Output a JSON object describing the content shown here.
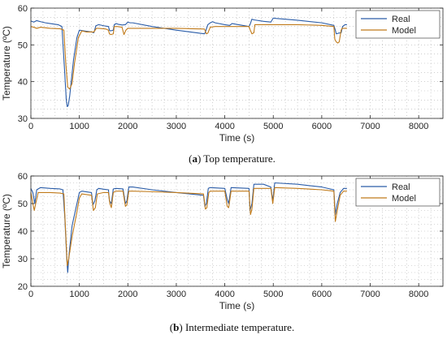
{
  "chart_data": [
    {
      "type": "line",
      "caption_letter": "a",
      "caption_text": ") Top temperature.",
      "title": "",
      "xlabel": "Time (s)",
      "ylabel": "Temperature (ºC)",
      "xlim": [
        0,
        8500
      ],
      "ylim": [
        30,
        60
      ],
      "xticks": [
        "0",
        "1000",
        "2000",
        "3000",
        "4000",
        "5000",
        "6000",
        "7000",
        "8000"
      ],
      "yticks": [
        "30",
        "40",
        "50",
        "60"
      ],
      "grid": "dotted",
      "legend": "top-right",
      "series": [
        {
          "name": "Real",
          "color": "#2a5ca8",
          "x": [
            0,
            60,
            120,
            200,
            300,
            400,
            560,
            640,
            700,
            730,
            750,
            770,
            800,
            880,
            950,
            1000,
            1100,
            1250,
            1300,
            1340,
            1400,
            1500,
            1600,
            1620,
            1640,
            1700,
            1720,
            1760,
            1800,
            1880,
            1950,
            2000,
            2050,
            2100,
            2500,
            3000,
            3580,
            3600,
            3650,
            3700,
            3750,
            3800,
            4000,
            4100,
            4150,
            4500,
            4520,
            4560,
            4600,
            4800,
            4950,
            5000,
            5050,
            5500,
            6000,
            6250,
            6280,
            6300,
            6350,
            6400,
            6430,
            6480,
            6520
          ],
          "y": [
            56.5,
            56.2,
            56.6,
            56.3,
            56.0,
            55.8,
            55.5,
            55.0,
            42,
            35,
            33.2,
            33.5,
            36,
            46,
            52,
            54,
            53.8,
            53.5,
            53.3,
            55.2,
            55.5,
            55.2,
            55.0,
            54.0,
            53.8,
            54.0,
            55.5,
            55.8,
            55.6,
            55.4,
            55.5,
            56.2,
            56.0,
            56.0,
            55.0,
            54.0,
            53.0,
            53.5,
            55.5,
            56.0,
            56.3,
            56.0,
            55.5,
            55.3,
            55.8,
            55.0,
            55.5,
            57.0,
            56.8,
            56.4,
            56.2,
            57.3,
            57.2,
            56.7,
            56.0,
            55.3,
            54.0,
            53.0,
            53.2,
            53.3,
            55.0,
            55.5,
            55.5
          ]
        },
        {
          "name": "Model",
          "color": "#c07a1a",
          "x": [
            0,
            60,
            120,
            200,
            400,
            600,
            680,
            720,
            760,
            800,
            850,
            900,
            980,
            1050,
            1150,
            1250,
            1300,
            1350,
            1400,
            1550,
            1600,
            1620,
            1650,
            1700,
            1720,
            1780,
            1880,
            1920,
            1960,
            2000,
            2100,
            2500,
            3000,
            3580,
            3620,
            3650,
            3700,
            3800,
            4000,
            4500,
            4520,
            4560,
            4600,
            4620,
            4700,
            5000,
            5500,
            6000,
            6250,
            6270,
            6300,
            6330,
            6360,
            6400,
            6420,
            6450,
            6520
          ],
          "y": [
            55.0,
            54.8,
            54.5,
            54.8,
            54.5,
            54.4,
            54.0,
            45.0,
            38.5,
            38.0,
            39.5,
            45.0,
            52.0,
            53.8,
            53.5,
            53.5,
            53.5,
            54.5,
            54.5,
            54.3,
            54.0,
            53.0,
            52.8,
            53.0,
            55.0,
            55.0,
            54.8,
            52.8,
            54.0,
            54.5,
            54.5,
            54.5,
            54.5,
            54.3,
            53.0,
            53.2,
            54.8,
            55.0,
            55.0,
            55.0,
            54.2,
            53.0,
            53.3,
            55.5,
            55.5,
            55.5,
            55.5,
            55.3,
            55.0,
            51.5,
            50.8,
            50.5,
            50.8,
            54.0,
            54.5,
            54.5,
            54.5
          ]
        }
      ]
    },
    {
      "type": "line",
      "caption_letter": "b",
      "caption_text": ") Intermediate temperature.",
      "title": "",
      "xlabel": "Time (s)",
      "ylabel": "Temperature (ºC)",
      "xlim": [
        0,
        8500
      ],
      "ylim": [
        20,
        60
      ],
      "xticks": [
        "0",
        "1000",
        "2000",
        "3000",
        "4000",
        "5000",
        "6000",
        "7000",
        "8000"
      ],
      "yticks": [
        "20",
        "30",
        "40",
        "50",
        "60"
      ],
      "grid": "dotted",
      "legend": "top-right",
      "series": [
        {
          "name": "Real",
          "color": "#2a5ca8",
          "x": [
            0,
            40,
            80,
            120,
            200,
            400,
            600,
            660,
            700,
            740,
            760,
            790,
            850,
            950,
            1000,
            1050,
            1250,
            1280,
            1320,
            1360,
            1400,
            1500,
            1600,
            1620,
            1660,
            1700,
            1750,
            1900,
            1950,
            1980,
            2020,
            2100,
            2500,
            3000,
            3560,
            3590,
            3620,
            3660,
            3700,
            4000,
            4050,
            4080,
            4130,
            4500,
            4520,
            4560,
            4600,
            4800,
            4950,
            4990,
            5030,
            5500,
            6000,
            6250,
            6280,
            6320,
            6380,
            6450,
            6520
          ],
          "y": [
            55.5,
            54.0,
            50.0,
            55.0,
            55.8,
            55.5,
            55.3,
            55.0,
            45.0,
            30.0,
            25.0,
            32.0,
            42.0,
            50.0,
            54.0,
            54.5,
            54.0,
            49.5,
            51.0,
            55.0,
            55.5,
            55.2,
            55.0,
            51.0,
            50.0,
            55.3,
            55.5,
            55.3,
            50.0,
            51.0,
            56.0,
            56.0,
            55.0,
            54.0,
            53.0,
            49.0,
            50.0,
            55.5,
            55.8,
            55.5,
            51.5,
            50.0,
            55.8,
            55.5,
            47.5,
            50.0,
            57.0,
            57.0,
            56.0,
            51.0,
            57.5,
            57.0,
            56.0,
            55.0,
            46.0,
            50.0,
            54.0,
            55.5,
            55.5
          ]
        },
        {
          "name": "Model",
          "color": "#c07a1a",
          "x": [
            0,
            40,
            70,
            100,
            150,
            400,
            600,
            680,
            730,
            750,
            780,
            850,
            950,
            1000,
            1050,
            1250,
            1290,
            1330,
            1370,
            1500,
            1600,
            1630,
            1660,
            1700,
            1750,
            1900,
            1950,
            1980,
            2020,
            2100,
            2500,
            3000,
            3560,
            3600,
            3630,
            3670,
            3700,
            4000,
            4050,
            4080,
            4130,
            4500,
            4530,
            4560,
            4600,
            4800,
            4950,
            4990,
            5030,
            5500,
            6000,
            6250,
            6280,
            6320,
            6380,
            6450,
            6520
          ],
          "y": [
            54.0,
            50.0,
            47.5,
            50.0,
            54.0,
            54.0,
            53.8,
            53.5,
            35.0,
            27.5,
            30.0,
            38.0,
            47.0,
            52.0,
            53.5,
            53.0,
            47.5,
            48.5,
            53.5,
            54.0,
            54.0,
            50.0,
            48.5,
            54.0,
            54.5,
            54.5,
            49.0,
            49.5,
            54.5,
            54.5,
            54.3,
            54.0,
            53.5,
            48.0,
            48.5,
            54.0,
            54.5,
            54.5,
            49.0,
            48.5,
            54.5,
            54.5,
            46.0,
            48.0,
            55.5,
            55.5,
            55.5,
            50.0,
            55.8,
            55.5,
            55.0,
            54.5,
            43.5,
            47.5,
            53.0,
            54.5,
            54.5
          ]
        }
      ]
    }
  ]
}
